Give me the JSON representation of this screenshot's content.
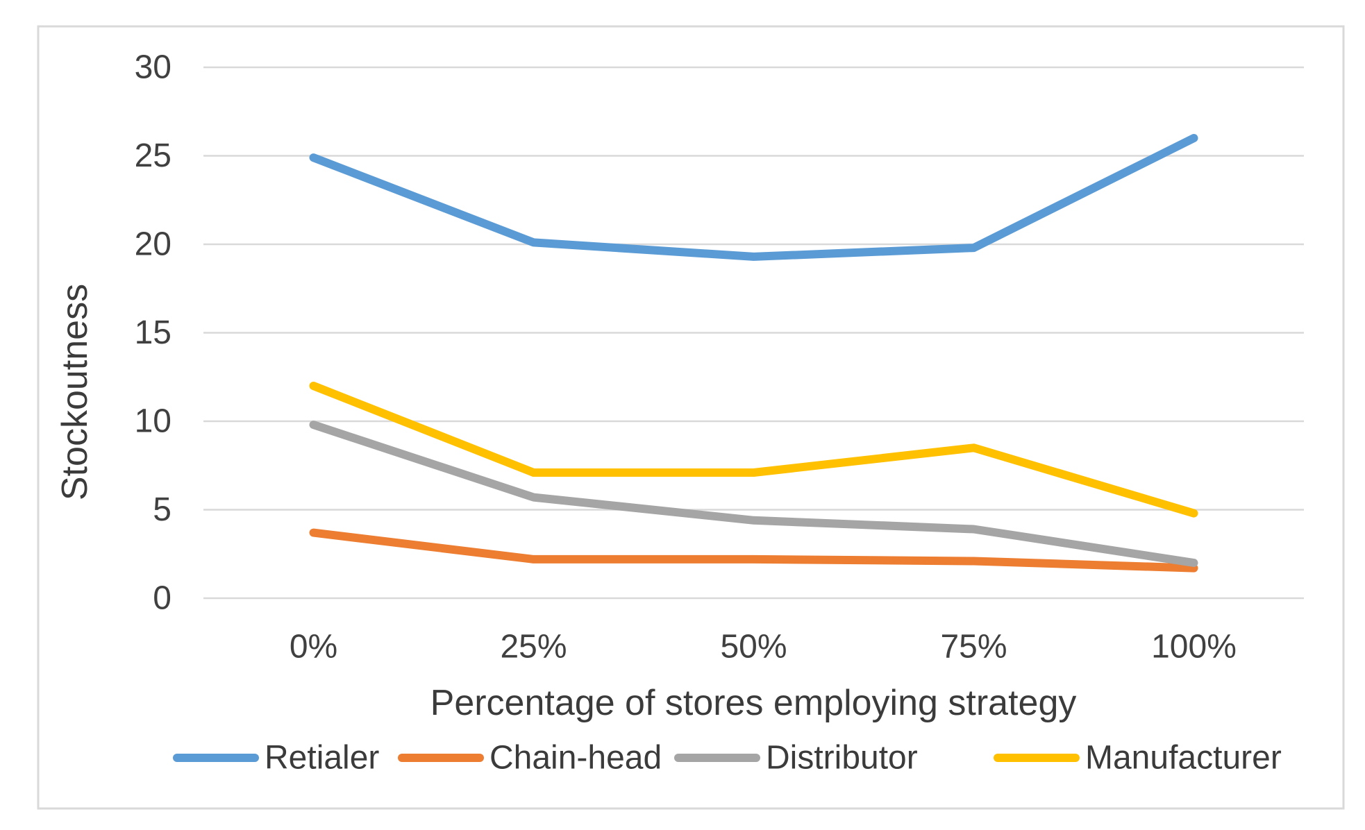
{
  "chart_data": {
    "type": "line",
    "title": "",
    "categories": [
      "0%",
      "25%",
      "50%",
      "75%",
      "100%"
    ],
    "series": [
      {
        "name": "Retialer",
        "color": "#5B9BD5",
        "values": [
          24.9,
          20.1,
          19.3,
          19.8,
          26.0
        ]
      },
      {
        "name": "Chain-head",
        "color": "#ED7D31",
        "values": [
          3.7,
          2.2,
          2.2,
          2.1,
          1.7
        ]
      },
      {
        "name": "Distributor",
        "color": "#A5A5A5",
        "values": [
          9.8,
          5.7,
          4.4,
          3.9,
          2.0
        ]
      },
      {
        "name": "Manufacturer",
        "color": "#FFC000",
        "values": [
          12.0,
          7.1,
          7.1,
          8.5,
          4.8
        ]
      }
    ],
    "xlabel": "Percentage of stores employing strategy",
    "ylabel": "Stockoutness",
    "ylim": [
      0,
      30
    ],
    "y_ticks": [
      0,
      5,
      10,
      15,
      20,
      25,
      30
    ],
    "grid": true,
    "legend_position": "bottom",
    "colors": {
      "grid": "#d9d9d9",
      "border": "#d9d9d9",
      "text": "#404040"
    }
  }
}
